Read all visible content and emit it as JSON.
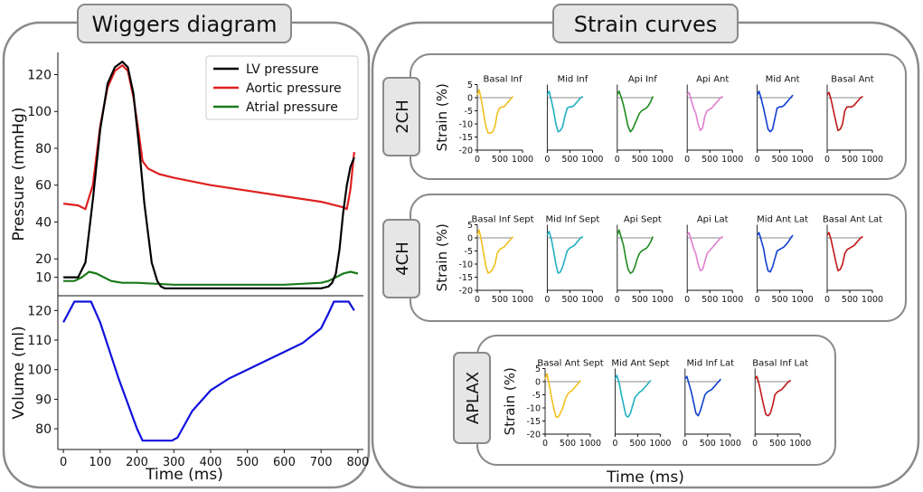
{
  "wiggers": {
    "panel_title": "Wiggers diagram",
    "chart_data": {
      "type": "line",
      "pressure": {
        "ylabel": "Pressure (mmHg)",
        "ylim": [
          0,
          132
        ],
        "yticks": [
          10,
          20,
          40,
          60,
          80,
          100,
          120
        ],
        "legend": [
          "LV pressure",
          "Aortic pressure",
          "Atrial pressure"
        ],
        "legend_position": "top-right",
        "series": [
          {
            "name": "LV pressure",
            "color": "#000000",
            "x": [
              0,
              40,
              60,
              80,
              100,
              120,
              140,
              160,
              175,
              190,
              205,
              220,
              240,
              255,
              265,
              275,
              290,
              310,
              350,
              400,
              500,
              600,
              700,
              720,
              730,
              740,
              750,
              760,
              770,
              780,
              790
            ],
            "y": [
              10,
              10,
              18,
              52,
              90,
              115,
              124,
              127,
              124,
              110,
              82,
              50,
              18,
              8,
              5,
              4,
              4,
              4,
              4,
              4,
              4,
              4,
              4,
              5,
              7,
              12,
              25,
              45,
              60,
              70,
              75
            ]
          },
          {
            "name": "Aortic pressure",
            "color": "#e02020",
            "x": [
              0,
              40,
              60,
              80,
              100,
              120,
              140,
              160,
              175,
              190,
              205,
              215,
              230,
              260,
              300,
              400,
              500,
              600,
              700,
              760,
              770,
              780,
              790
            ],
            "y": [
              50,
              49,
              47,
              60,
              92,
              113,
              122,
              125,
              122,
              108,
              88,
              73,
              69,
              66,
              64,
              60,
              57,
              54,
              51,
              48,
              47,
              58,
              78
            ]
          },
          {
            "name": "Atrial pressure",
            "color": "#1a7a1a",
            "x": [
              0,
              30,
              50,
              70,
              90,
              110,
              130,
              160,
              200,
              300,
              400,
              500,
              600,
              700,
              720,
              740,
              760,
              780,
              800
            ],
            "y": [
              8,
              8,
              10,
              13,
              12,
              10,
              8,
              7,
              7,
              6,
              6,
              6,
              6,
              7,
              8,
              10,
              12,
              13,
              12
            ]
          }
        ]
      },
      "volume": {
        "ylabel": "Volume (ml)",
        "ylim": [
          73,
          125
        ],
        "yticks": [
          80,
          90,
          100,
          110,
          120
        ],
        "series": [
          {
            "name": "LV volume",
            "color": "#1010dd",
            "x": [
              0,
              30,
              45,
              75,
              100,
              150,
              200,
              215,
              250,
              295,
              310,
              350,
              400,
              450,
              500,
              550,
              600,
              650,
              700,
              720,
              735,
              760,
              775,
              790
            ],
            "y": [
              116,
              123,
              123,
              123,
              116,
              97,
              80,
              76,
              76,
              76,
              77,
              86,
              93,
              97,
              100,
              103,
              106,
              109,
              114,
              119,
              123,
              123,
              123,
              120
            ]
          }
        ]
      },
      "xlabel": "Time (ms)",
      "xlim": [
        -15,
        815
      ],
      "xticks": [
        0,
        100,
        200,
        300,
        400,
        500,
        600,
        700,
        800
      ]
    }
  },
  "strain": {
    "panel_title": "Strain curves",
    "xlabel": "Time (ms)",
    "ylabel": "Strain (%)",
    "chart_data": {
      "type": "line",
      "xlim": [
        0,
        1000
      ],
      "ylim": [
        -20,
        5
      ],
      "yticks": [
        5,
        0,
        -5,
        -10,
        -15,
        -20
      ],
      "xticks": [
        0,
        500,
        1000
      ],
      "x": [
        0,
        40,
        90,
        140,
        190,
        240,
        290,
        340,
        390,
        440,
        490,
        540,
        590,
        640,
        690,
        740,
        790
      ],
      "views": [
        {
          "name": "2CH",
          "segments": [
            {
              "title": "Basal Inf",
              "color": "#f0c020",
              "values": [
                1,
                3,
                -1,
                -6,
                -11,
                -13.5,
                -13.5,
                -13,
                -11,
                -6,
                -4,
                -3.5,
                -3.5,
                -2.5,
                -1.5,
                -0.5,
                0.5
              ]
            },
            {
              "title": "Mid Inf",
              "color": "#20b0c0",
              "values": [
                1,
                2.5,
                -1,
                -5,
                -10,
                -13,
                -12.5,
                -11,
                -7,
                -4,
                -3.5,
                -3.5,
                -3,
                -2,
                -1,
                0,
                0.5
              ]
            },
            {
              "title": "Api Inf",
              "color": "#208a20",
              "values": [
                1,
                2.5,
                0,
                -3,
                -7,
                -11,
                -13,
                -12,
                -10,
                -8,
                -6,
                -5,
                -4.5,
                -4,
                -3,
                -1.5,
                0.5
              ]
            },
            {
              "title": "Api Ant",
              "color": "#e080d0",
              "values": [
                1,
                2,
                -1,
                -4,
                -6,
                -10,
                -12.5,
                -11.5,
                -7,
                -5,
                -4.5,
                -4,
                -3,
                -2,
                -1,
                0,
                0.5
              ]
            },
            {
              "title": "Mid Ant",
              "color": "#1040d0",
              "values": [
                1,
                2.5,
                -0.5,
                -4,
                -8,
                -12,
                -13,
                -12,
                -8,
                -4,
                -3.5,
                -3.5,
                -3,
                -2,
                -1,
                0,
                1
              ]
            },
            {
              "title": "Basal Ant",
              "color": "#c01818",
              "values": [
                1,
                2,
                -1,
                -5,
                -9,
                -12.5,
                -12,
                -10,
                -5,
                -3.5,
                -3.5,
                -3.5,
                -3,
                -2,
                -1,
                0,
                0.5
              ]
            }
          ]
        },
        {
          "name": "4CH",
          "segments": [
            {
              "title": "Basal Inf Sept",
              "color": "#f0c020",
              "values": [
                1,
                3,
                -1,
                -6,
                -11,
                -13.5,
                -13,
                -12,
                -10,
                -6,
                -4.5,
                -4,
                -3.5,
                -2.5,
                -1.5,
                -0.5,
                0.5
              ]
            },
            {
              "title": "Mid Inf Sept",
              "color": "#20b0c0",
              "values": [
                1,
                2.5,
                -0.5,
                -5,
                -10,
                -13.5,
                -13,
                -11,
                -8,
                -5,
                -4,
                -3.5,
                -3,
                -2,
                -1,
                0,
                0.5
              ]
            },
            {
              "title": "Api Sept",
              "color": "#208a20",
              "values": [
                1,
                3,
                0,
                -3,
                -8,
                -12,
                -13.5,
                -13,
                -11,
                -8,
                -6,
                -5,
                -4.5,
                -4,
                -3,
                -1.5,
                0.5
              ]
            },
            {
              "title": "Api Lat",
              "color": "#e080d0",
              "values": [
                1,
                2,
                -1,
                -4,
                -6,
                -10,
                -12.5,
                -12,
                -9,
                -6,
                -5,
                -4,
                -3,
                -2,
                -1,
                0,
                0.5
              ]
            },
            {
              "title": "Mid Ant Lat",
              "color": "#1040d0",
              "values": [
                1,
                2,
                -1,
                -4,
                -9,
                -12.5,
                -13,
                -11,
                -8,
                -5,
                -4.5,
                -4,
                -3.5,
                -2.5,
                -1.5,
                0,
                1
              ]
            },
            {
              "title": "Basal Ant Lat",
              "color": "#c01818",
              "values": [
                1,
                2,
                -1,
                -5,
                -9,
                -12.5,
                -12,
                -10,
                -6,
                -4.5,
                -4,
                -3.5,
                -3,
                -2,
                -1,
                0,
                0.5
              ]
            }
          ]
        },
        {
          "name": "APLAX",
          "segments": [
            {
              "title": "Basal Ant Sept",
              "color": "#f0c020",
              "values": [
                1,
                3,
                -1,
                -6,
                -10,
                -13.5,
                -13.5,
                -12,
                -10,
                -7,
                -5,
                -4,
                -3.5,
                -2.5,
                -1.5,
                -0.5,
                0.5
              ]
            },
            {
              "title": "Mid Ant Sept",
              "color": "#20b0c0",
              "values": [
                1,
                2.5,
                -0.5,
                -5,
                -9,
                -13,
                -13.5,
                -12,
                -9,
                -6,
                -5,
                -4,
                -3.5,
                -2.5,
                -1.5,
                -0.5,
                0.5
              ]
            },
            {
              "title": "Mid Inf Lat",
              "color": "#1040d0",
              "values": [
                1,
                2,
                -1,
                -4,
                -8,
                -12,
                -13,
                -11,
                -8,
                -5,
                -4,
                -3.5,
                -3,
                -2,
                -1,
                0,
                1
              ]
            },
            {
              "title": "Basal Inf Lat",
              "color": "#c01818",
              "values": [
                1,
                2,
                -1,
                -5,
                -9,
                -12.5,
                -13,
                -12,
                -9,
                -5,
                -4,
                -3.5,
                -3,
                -2,
                -1,
                0,
                0.5
              ]
            }
          ]
        }
      ]
    }
  }
}
